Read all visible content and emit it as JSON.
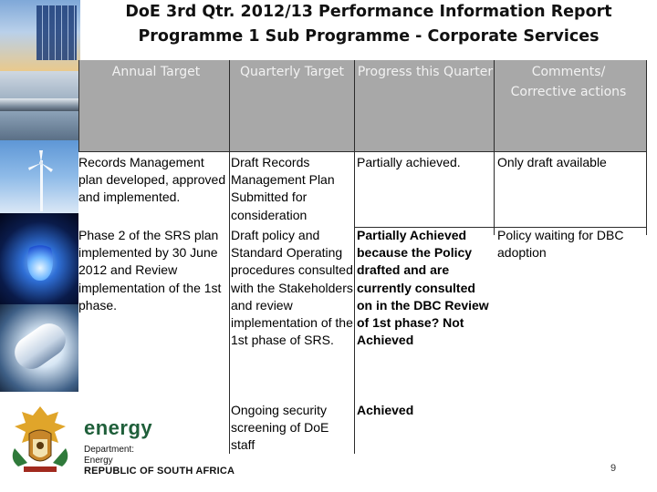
{
  "slide": {
    "title_line1": "DoE 3rd Qtr. 2012/13 Performance Information Report",
    "title_line2": "Programme 1 Sub Programme - Corporate Services"
  },
  "table": {
    "headers": [
      "Annual Target",
      "Quarterly Target",
      "Progress this Quarter",
      "Comments/ Corrective actions"
    ],
    "rows": [
      {
        "annual_target": "Records Management plan developed, approved and implemented.",
        "quarterly_target": "Draft Records Management Plan Submitted for consideration",
        "progress": "Partially achieved.",
        "comments": "Only draft available"
      },
      {
        "annual_target": "Phase 2 of the SRS plan implemented by 30 June 2012 and Review implementation of the 1st phase.",
        "quarterly_target": "Draft policy and Standard Operating procedures consulted with the Stakeholders and review implementation of the 1st phase of SRS.",
        "progress": "Partially Achieved because the Policy drafted and are currently consulted on in the DBC Review of 1st phase? Not Achieved",
        "comments": "Policy waiting for DBC adoption"
      },
      {
        "annual_target": "",
        "quarterly_target": "Ongoing security screening of DoE staff",
        "progress": "Achieved",
        "comments": ""
      }
    ]
  },
  "footer": {
    "logo_word": "energy",
    "logo_department": "Department:",
    "logo_dept_name": "Energy",
    "logo_country": "REPUBLIC OF SOUTH AFRICA",
    "page_number": "9"
  },
  "icons": [
    "solar-panel-image",
    "pipeline-image",
    "wind-turbine-image",
    "gas-flame-image",
    "light-bulb-image",
    "coat-of-arms-icon"
  ]
}
